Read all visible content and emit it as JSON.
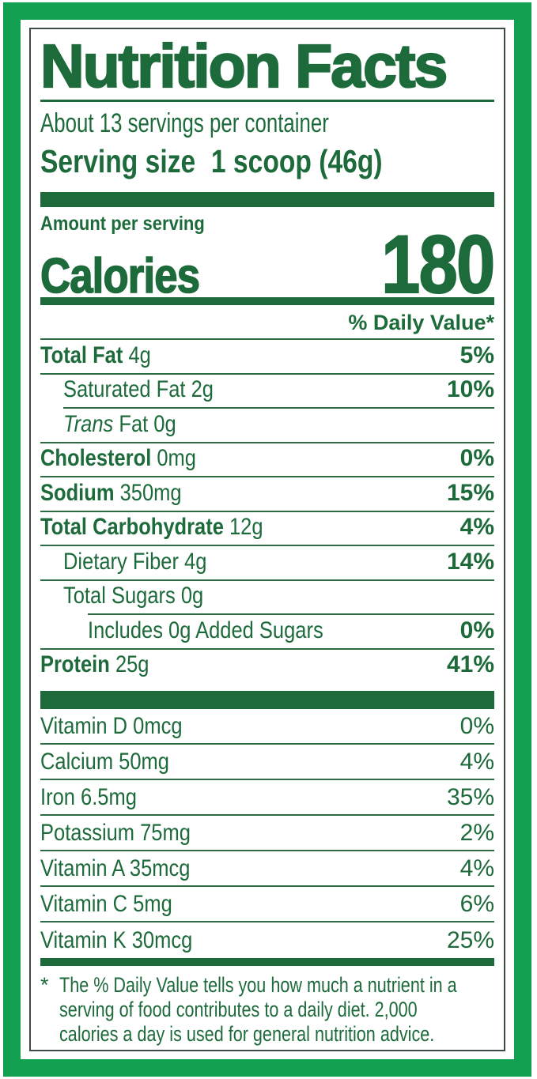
{
  "colors": {
    "border_green": "#12a150",
    "text_green": "#1d6a3b"
  },
  "header": {
    "title": "Nutrition Facts",
    "servings_per_container": "About 13 servings per container",
    "serving_size_label": "Serving size",
    "serving_size_value": "1 scoop (46g)"
  },
  "calories": {
    "amount_per_serving_label": "Amount per serving",
    "calories_label": "Calories",
    "calories_value": "180"
  },
  "daily_value_header": "% Daily Value*",
  "nutrients": [
    {
      "parts": [
        {
          "t": "Total Fat",
          "b": true
        },
        {
          "t": " 4g"
        }
      ],
      "dv": "5%",
      "dv_bold": true,
      "indent": 0,
      "sep": "full"
    },
    {
      "parts": [
        {
          "t": "Saturated Fat 2g"
        }
      ],
      "dv": "10%",
      "dv_bold": true,
      "indent": 1,
      "sep": "full"
    },
    {
      "parts": [
        {
          "t": "Trans",
          "i": true
        },
        {
          "t": " Fat 0g"
        }
      ],
      "dv": "",
      "dv_bold": false,
      "indent": 1,
      "sep": "ind1"
    },
    {
      "parts": [
        {
          "t": "Cholesterol",
          "b": true
        },
        {
          "t": " 0mg"
        }
      ],
      "dv": "0%",
      "dv_bold": true,
      "indent": 0,
      "sep": "full"
    },
    {
      "parts": [
        {
          "t": "Sodium",
          "b": true
        },
        {
          "t": " 350mg"
        }
      ],
      "dv": "15%",
      "dv_bold": true,
      "indent": 0,
      "sep": "full"
    },
    {
      "parts": [
        {
          "t": "Total Carbohydrate",
          "b": true
        },
        {
          "t": " 12g"
        }
      ],
      "dv": "4%",
      "dv_bold": true,
      "indent": 0,
      "sep": "full"
    },
    {
      "parts": [
        {
          "t": "Dietary Fiber 4g"
        }
      ],
      "dv": "14%",
      "dv_bold": true,
      "indent": 1,
      "sep": "full"
    },
    {
      "parts": [
        {
          "t": "Total Sugars 0g"
        }
      ],
      "dv": "",
      "dv_bold": false,
      "indent": 1,
      "sep": "full"
    },
    {
      "parts": [
        {
          "t": "Includes 0g Added Sugars"
        }
      ],
      "dv": "0%",
      "dv_bold": true,
      "indent": 2,
      "sep": "ind2"
    },
    {
      "parts": [
        {
          "t": "Protein",
          "b": true
        },
        {
          "t": " 25g"
        }
      ],
      "dv": "41%",
      "dv_bold": true,
      "indent": 0,
      "sep": "full"
    }
  ],
  "vitamins": [
    {
      "name": "Vitamin D 0mcg",
      "dv": "0%"
    },
    {
      "name": "Calcium 50mg",
      "dv": "4%"
    },
    {
      "name": "Iron 6.5mg",
      "dv": "35%"
    },
    {
      "name": "Potassium 75mg",
      "dv": "2%"
    },
    {
      "name": "Vitamin A 35mcg",
      "dv": "4%"
    },
    {
      "name": "Vitamin C 5mg",
      "dv": "6%"
    },
    {
      "name": "Vitamin K 30mcg",
      "dv": "25%"
    }
  ],
  "footnote": {
    "symbol": "*",
    "lines": [
      "The % Daily Value tells you how much a nutrient in a",
      "serving of food contributes to a daily diet. 2,000",
      "calories a day is used for general nutrition advice."
    ]
  }
}
